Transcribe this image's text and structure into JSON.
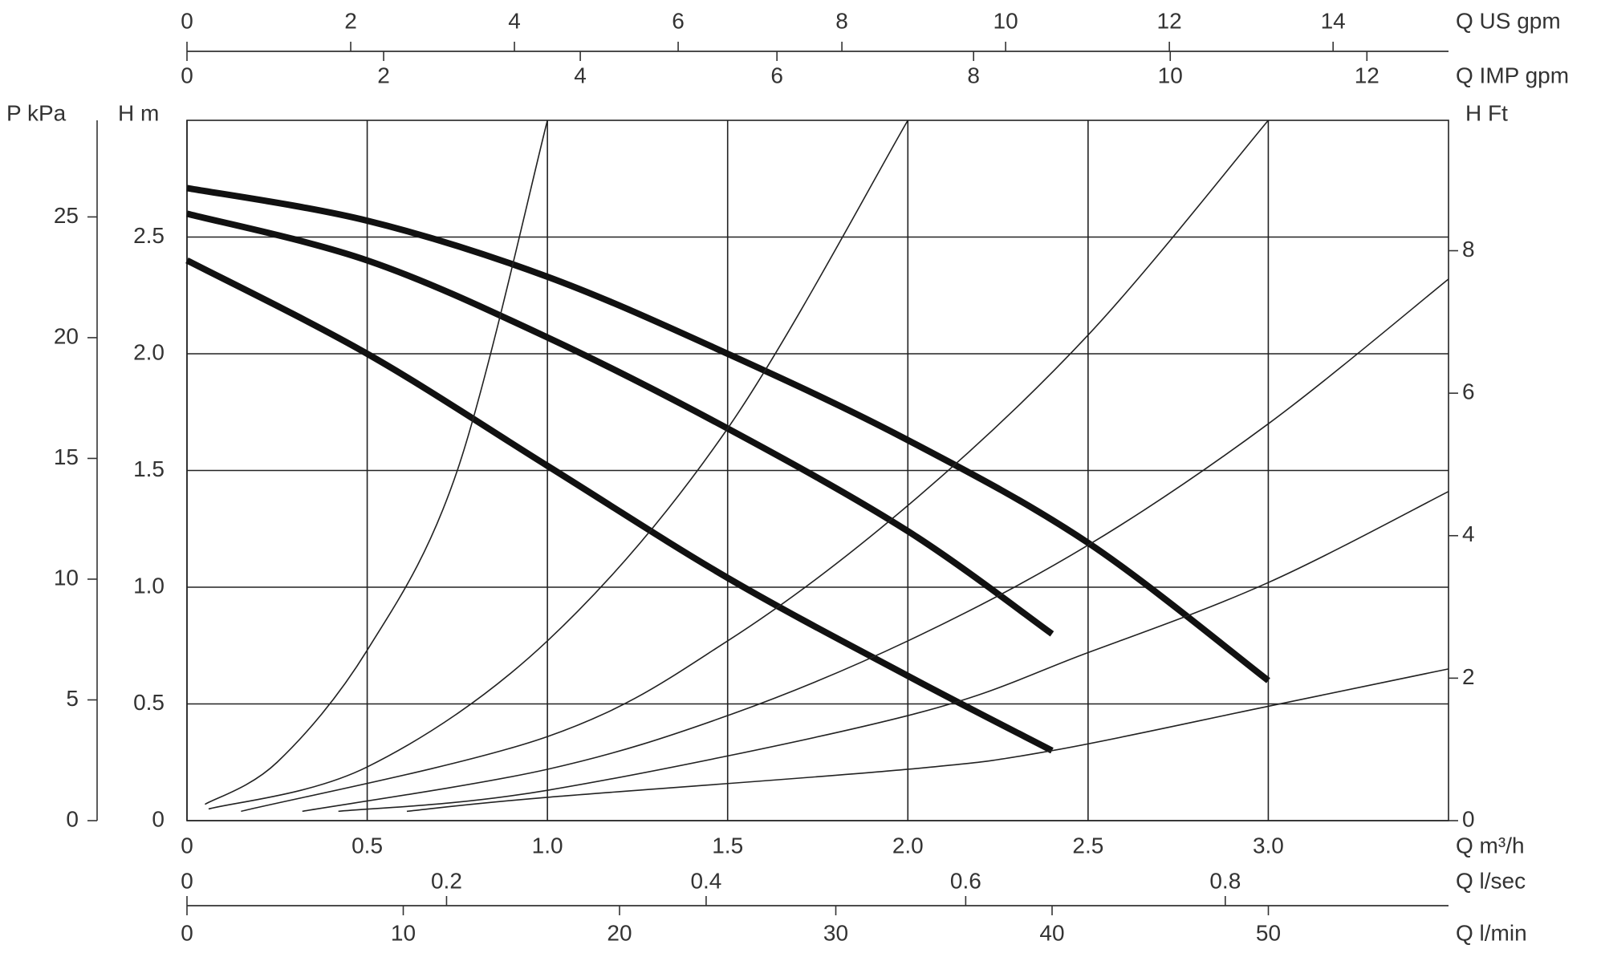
{
  "chart_data": {
    "type": "line",
    "x_label": "Q m³/h",
    "y_label": "H m",
    "xlim": [
      0,
      3.5
    ],
    "ylim": [
      0,
      3
    ],
    "xticks": [
      0,
      0.5,
      {
        "value": 1,
        "label": "1.0"
      },
      1.5,
      {
        "value": 2,
        "label": "2.0"
      },
      2.5,
      {
        "value": 3,
        "label": "3.0"
      }
    ],
    "yticks": [
      0,
      0.5,
      {
        "value": 1,
        "label": "1.0"
      },
      1.5,
      {
        "value": 2,
        "label": "2.0"
      },
      2.5
    ],
    "grid": true,
    "series": [
      {
        "color": "#111111",
        "line_width": 8,
        "x": [
          0,
          0.5,
          1,
          1.5,
          2,
          2.5,
          3
        ],
        "values": [
          2.71,
          2.57,
          2.33,
          2.0,
          1.63,
          1.19,
          0.6
        ]
      },
      {
        "color": "#111111",
        "line_width": 8,
        "x": [
          0,
          0.5,
          1,
          1.5,
          2,
          2.4
        ],
        "values": [
          2.6,
          2.4,
          2.07,
          1.68,
          1.24,
          0.8
        ]
      },
      {
        "color": "#111111",
        "line_width": 8,
        "x": [
          0,
          0.5,
          1,
          1.5,
          2,
          2.4
        ],
        "values": [
          2.4,
          2.0,
          1.52,
          1.04,
          0.62,
          0.3
        ]
      },
      {
        "color": "#222222",
        "line_width": 1.6,
        "x": [
          0.05,
          0.25,
          0.5,
          0.75,
          1.0
        ],
        "values": [
          0.07,
          0.25,
          0.73,
          1.5,
          3.0
        ]
      },
      {
        "color": "#222222",
        "line_width": 1.6,
        "x": [
          0.06,
          0.5,
          1.0,
          1.5,
          2.0
        ],
        "values": [
          0.05,
          0.23,
          0.77,
          1.68,
          3.0
        ]
      },
      {
        "color": "#222222",
        "line_width": 1.6,
        "x": [
          0.15,
          1.0,
          1.5,
          2.0,
          2.5,
          3.0
        ],
        "values": [
          0.04,
          0.36,
          0.77,
          1.35,
          2.08,
          3.0
        ]
      },
      {
        "color": "#222222",
        "line_width": 1.6,
        "x": [
          0.32,
          1.0,
          1.5,
          2.0,
          2.5,
          3.0,
          3.5
        ],
        "values": [
          0.04,
          0.22,
          0.45,
          0.77,
          1.18,
          1.7,
          2.32
        ]
      },
      {
        "color": "#222222",
        "line_width": 1.6,
        "x": [
          0.42,
          1.0,
          2.0,
          2.5,
          3.0,
          3.5
        ],
        "values": [
          0.04,
          0.13,
          0.45,
          0.72,
          1.02,
          1.41
        ]
      },
      {
        "color": "#222222",
        "line_width": 1.6,
        "x": [
          0.61,
          1.0,
          2.0,
          2.4,
          3.0,
          3.5
        ],
        "values": [
          0.04,
          0.1,
          0.22,
          0.3,
          0.49,
          0.65
        ]
      }
    ],
    "secondary_axes": [
      {
        "label": "Q US gpm",
        "side": "top",
        "lim": [
          0,
          15.41
        ],
        "ticks": [
          0,
          2,
          4,
          6,
          8,
          10,
          12,
          14
        ]
      },
      {
        "label": "Q IMP gpm",
        "side": "top",
        "lim": [
          0,
          12.83
        ],
        "ticks": [
          0,
          2,
          4,
          6,
          8,
          10,
          12
        ]
      },
      {
        "label": "P kPa",
        "side": "left",
        "lim": [
          0,
          29
        ],
        "ticks": [
          0,
          5,
          10,
          15,
          20,
          25
        ]
      },
      {
        "label": "H Ft",
        "side": "right",
        "lim": [
          0,
          9.83
        ],
        "ticks": [
          0,
          2,
          4,
          6,
          8
        ]
      },
      {
        "label": "Q l/sec",
        "side": "bottom",
        "lim": [
          0,
          0.972
        ],
        "ticks": [
          0,
          0.2,
          0.4,
          0.6,
          0.8
        ]
      },
      {
        "label": "Q l/min",
        "side": "bottom",
        "lim": [
          0,
          58.33
        ],
        "ticks": [
          0,
          10,
          20,
          30,
          40,
          50
        ]
      }
    ]
  }
}
